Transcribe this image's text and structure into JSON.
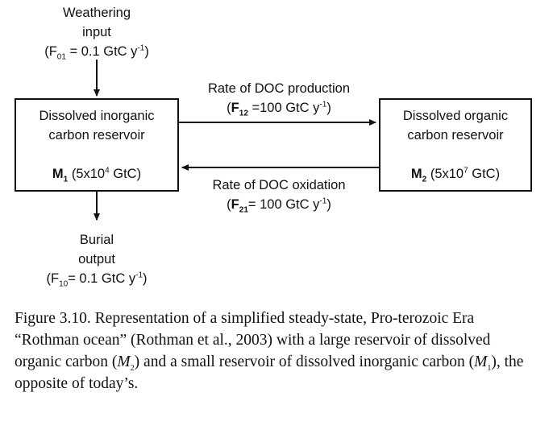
{
  "weathering": {
    "line1": "Weathering",
    "line2": "input",
    "flux_symbol": "F",
    "flux_sub": "01",
    "flux_value": " = 0.1 GtC y",
    "flux_exp": "-1"
  },
  "burial": {
    "line1": "Burial",
    "line2": "output",
    "flux_symbol": "F",
    "flux_sub": "10",
    "flux_value": "= 0.1 GtC y",
    "flux_exp": "-1"
  },
  "inorganic_box": {
    "line1": "Dissolved inorganic",
    "line2": "carbon reservoir",
    "mass_symbol": "M",
    "mass_sub": "1",
    "mass_value": " (5x10",
    "mass_exp": "4",
    "mass_unit": " GtC)"
  },
  "organic_box": {
    "line1": "Dissolved organic",
    "line2": "carbon reservoir",
    "mass_symbol": "M",
    "mass_sub": "2",
    "mass_value": " (5x10",
    "mass_exp": "7",
    "mass_unit": " GtC)"
  },
  "production": {
    "title": "Rate of DOC production",
    "flux_symbol": "F",
    "flux_sub": "12",
    "flux_value": " =100 GtC y",
    "flux_exp": "-1"
  },
  "oxidation": {
    "title": "Rate of DOC oxidation",
    "flux_symbol": "F",
    "flux_sub": "21",
    "flux_value": "= 100 GtC y",
    "flux_exp": "-1"
  },
  "caption": {
    "prefix": "Figure 3.10. Representation of a simplified steady-state, Pro-terozoic Era “Rothman ocean” (Rothman et al., 2003) with a large reservoir of dissolved organic carbon (",
    "m2": "M",
    "m2_sub": "2",
    "middle": ") and a small reservoir of dissolved inorganic carbon (",
    "m1": "M",
    "m1_sub": "1",
    "suffix": "), the opposite of today’s."
  },
  "colors": {
    "ink": "#111111",
    "background": "#ffffff"
  }
}
